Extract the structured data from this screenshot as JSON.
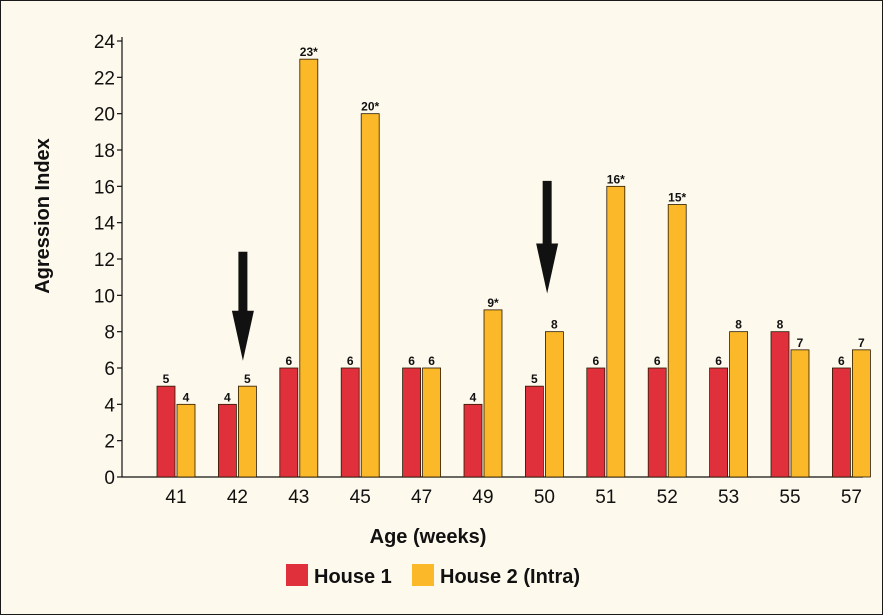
{
  "chart_data": {
    "type": "bar",
    "title": "",
    "xlabel": "Age (weeks)",
    "ylabel": "Agression Index",
    "ylim": [
      0,
      24
    ],
    "yticks": [
      "0",
      "2",
      "4",
      "6",
      "8",
      "10",
      "12",
      "14",
      "16",
      "18",
      "20",
      "22",
      "24"
    ],
    "categories": [
      "41",
      "42",
      "43",
      "45",
      "47",
      "49",
      "50",
      "51",
      "52",
      "53",
      "55",
      "57"
    ],
    "series": [
      {
        "name": "House 1",
        "color": "#e0303c",
        "values": [
          5,
          4,
          6,
          6,
          6,
          4,
          5,
          6,
          6,
          6,
          8,
          6
        ],
        "labels": [
          "5",
          "4",
          "6",
          "6",
          "6",
          "4",
          "5",
          "6",
          "6",
          "6",
          "8",
          "6"
        ]
      },
      {
        "name": "House 2 (Intra)",
        "color": "#fbb829",
        "values": [
          4,
          5,
          23,
          20,
          6,
          9.2,
          8,
          16,
          15,
          8,
          7,
          7
        ],
        "labels": [
          "4",
          "5",
          "23*",
          "20*",
          "6",
          "9*",
          "8",
          "16*",
          "15*",
          "8",
          "7",
          "7"
        ]
      }
    ],
    "annotations": [
      {
        "type": "arrow-down",
        "category": "42",
        "y_from": 12.4,
        "y_to": 6.4
      },
      {
        "type": "arrow-down",
        "category": "50",
        "y_from": 16.3,
        "y_to": 10.1
      }
    ],
    "grid": false,
    "legend_position": "bottom-center"
  }
}
